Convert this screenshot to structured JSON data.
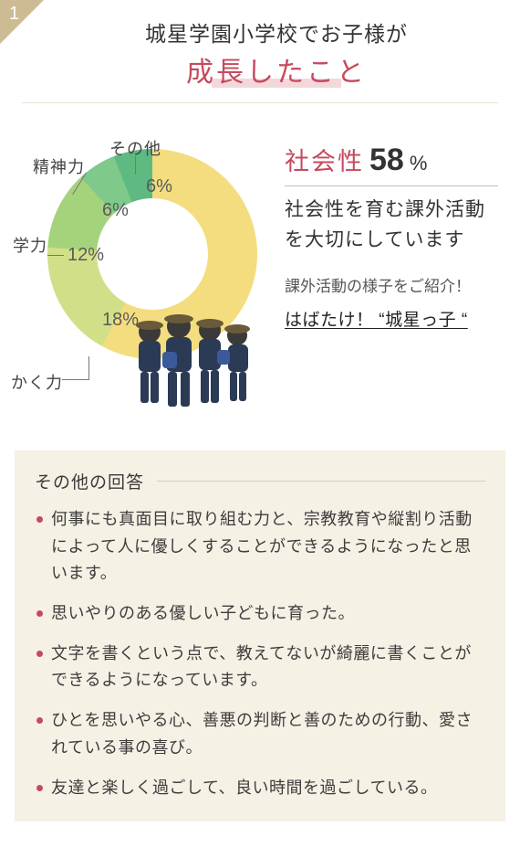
{
  "badge_number": "1",
  "title": {
    "line1": "城星学園小学校でお子様が",
    "line2": "成長したこと"
  },
  "chart": {
    "type": "donut",
    "background_color": "#ffffff",
    "hole_color": "#ffffff",
    "slices": [
      {
        "label": "社会性",
        "value": 58,
        "color": "#f4dd7f",
        "show_pct_on_chart": false
      },
      {
        "label": "かく力",
        "value": 18,
        "color": "#d1e088",
        "show_pct_on_chart": true
      },
      {
        "label": "学力",
        "value": 12,
        "color": "#a5d37c",
        "show_pct_on_chart": true
      },
      {
        "label": "精神力",
        "value": 6,
        "color": "#7fc98a",
        "show_pct_on_chart": true
      },
      {
        "label": "その他",
        "value": 6,
        "color": "#5eba81",
        "show_pct_on_chart": true
      }
    ],
    "pct_labels": {
      "kaku": "18%",
      "gaku": "12%",
      "seishin": "6%",
      "sonota": "6%"
    },
    "outer_labels": {
      "kaku": "かく力",
      "gaku": "学力",
      "seishin": "精神力",
      "sonota": "その他"
    }
  },
  "headline": {
    "label": "社会性",
    "value": "58",
    "unit": "%"
  },
  "side": {
    "caption": "社会性を育む課外活動を大切にしています",
    "note": "課外活動の様子をご紹介！",
    "link": "はばたけ！ “城星っ子 “"
  },
  "other": {
    "title": "その他の回答",
    "items": [
      "何事にも真面目に取り組む力と、宗教教育や縦割り活動によって人に優しくすることができるようになったと思います。",
      "思いやりのある優しい子どもに育った。",
      "文字を書くという点で、教えてないが綺麗に書くことができるようになっています。",
      "ひとを思いやる心、善悪の判断と善のための行動、愛されている事の喜び。",
      "友達と楽しく過ごして、良い時間を過ごしている。"
    ]
  },
  "colors": {
    "accent": "#c54a5d",
    "badge": "#cdbc93",
    "box_bg": "#f6f1e5",
    "separator": "#e7dfd0"
  }
}
